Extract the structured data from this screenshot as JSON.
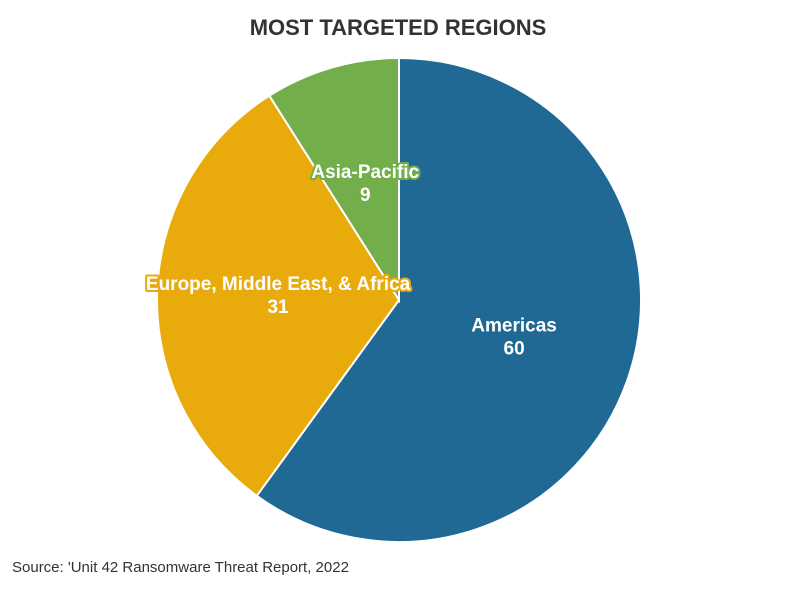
{
  "chart_data": {
    "type": "pie",
    "title": "MOST TARGETED REGIONS",
    "categories": [
      "Americas",
      "Europe, Middle East, & Africa",
      "Asia-Pacific"
    ],
    "values": [
      60,
      31,
      9
    ],
    "colors": [
      "#1f6994",
      "#e9ab0c",
      "#72ae4a"
    ],
    "source": "Source: 'Unit 42 Ransomware Threat Report, 2022"
  }
}
